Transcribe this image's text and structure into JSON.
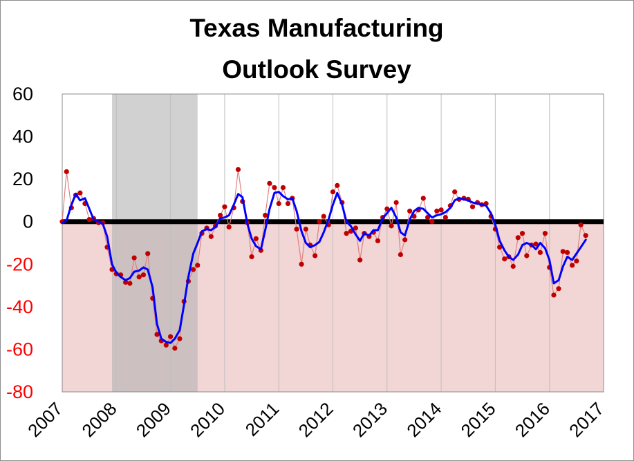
{
  "chart_data": {
    "type": "line",
    "title_lines": [
      "Texas Manufacturing",
      "Outlook Survey"
    ],
    "xlabel": "",
    "ylabel": "",
    "ylim": [
      -80,
      60
    ],
    "yticks": [
      60,
      40,
      20,
      0,
      -20,
      -40,
      -60,
      -80
    ],
    "xlim": [
      2007,
      2017
    ],
    "xticks": [
      "2007",
      "2008",
      "2009",
      "2010",
      "2011",
      "2012",
      "2013",
      "2014",
      "2015",
      "2016",
      "2017"
    ],
    "grid": "vertical",
    "legend": "none",
    "colors": {
      "raw_series": "#c00000",
      "smoothed_series": "#0000ff",
      "zero_line": "#000000",
      "negative_region": "#f2d5d5",
      "recession_band": "#b3b3b3",
      "negative_tick_labels": "#ff0000",
      "positive_tick_labels": "#000000"
    },
    "shaded_regions": [
      {
        "type": "recession",
        "x_start": 2007.92,
        "x_end": 2009.5
      }
    ],
    "negative_region": {
      "y_from": -80,
      "y_to": 0
    },
    "series": [
      {
        "kind": "monthly_raw_with_markers",
        "x": [
          2007.0,
          2007.08,
          2007.17,
          2007.25,
          2007.33,
          2007.42,
          2007.5,
          2007.58,
          2007.67,
          2007.75,
          2007.83,
          2007.92,
          2008.0,
          2008.08,
          2008.17,
          2008.25,
          2008.33,
          2008.42,
          2008.5,
          2008.58,
          2008.67,
          2008.75,
          2008.83,
          2008.92,
          2009.0,
          2009.08,
          2009.17,
          2009.25,
          2009.33,
          2009.42,
          2009.5,
          2009.58,
          2009.67,
          2009.75,
          2009.83,
          2009.92,
          2010.0,
          2010.08,
          2010.17,
          2010.25,
          2010.33,
          2010.42,
          2010.5,
          2010.58,
          2010.67,
          2010.75,
          2010.83,
          2010.92,
          2011.0,
          2011.08,
          2011.17,
          2011.25,
          2011.33,
          2011.42,
          2011.5,
          2011.58,
          2011.67,
          2011.75,
          2011.83,
          2011.92,
          2012.0,
          2012.08,
          2012.17,
          2012.25,
          2012.33,
          2012.42,
          2012.5,
          2012.58,
          2012.67,
          2012.75,
          2012.83,
          2012.92,
          2013.0,
          2013.08,
          2013.17,
          2013.25,
          2013.33,
          2013.42,
          2013.5,
          2013.58,
          2013.67,
          2013.75,
          2013.83,
          2013.92,
          2014.0,
          2014.08,
          2014.17,
          2014.25,
          2014.33,
          2014.42,
          2014.5,
          2014.58,
          2014.67,
          2014.75,
          2014.83,
          2014.92,
          2015.0,
          2015.08,
          2015.17,
          2015.25,
          2015.33,
          2015.42,
          2015.5,
          2015.58,
          2015.67,
          2015.75,
          2015.83,
          2015.92,
          2016.0,
          2016.08,
          2016.17,
          2016.25,
          2016.33,
          2016.42,
          2016.5,
          2016.58,
          2016.67
        ],
        "values": [
          0,
          23.5,
          6.5,
          12.5,
          13.5,
          8.5,
          1,
          1.5,
          -0.5,
          -0.5,
          -12,
          -22.5,
          -24.5,
          -25,
          -28.5,
          -29,
          -17,
          -26,
          -25,
          -15,
          -36,
          -53,
          -56,
          -58,
          -54,
          -59.5,
          -55,
          -37.5,
          -28,
          -22.5,
          -20.5,
          -5.5,
          -3,
          -7,
          -2,
          3,
          7,
          -2.5,
          6.5,
          24.5,
          9.5,
          -0.5,
          -16.5,
          -8,
          -13.5,
          3,
          18,
          16,
          8.5,
          16,
          8.5,
          11,
          -3.5,
          -20,
          -3.5,
          -11,
          -16,
          0,
          2.5,
          -1.5,
          14,
          17,
          9,
          -5.5,
          -4.5,
          -3,
          -18,
          -5.5,
          -7,
          -5,
          -9,
          2,
          6,
          -2,
          9,
          -15.5,
          -8.5,
          5,
          2.5,
          5.5,
          11,
          2,
          0,
          5,
          5.5,
          2,
          7.5,
          14,
          10.5,
          11,
          10.5,
          7,
          9,
          8,
          8.5,
          2.5,
          -3.5,
          -12,
          -17.5,
          -16.5,
          -21,
          -7.5,
          -5.5,
          -16,
          -11,
          -10.5,
          -14.5,
          -5.5,
          -21.5,
          -34.5,
          -31.5,
          -14,
          -14.5,
          -20.5,
          -18.5,
          -1.5,
          -6.5
        ]
      },
      {
        "kind": "three_month_moving_average",
        "x": [
          2007.0,
          2007.08,
          2007.17,
          2007.25,
          2007.33,
          2007.42,
          2007.5,
          2007.58,
          2007.67,
          2007.75,
          2007.83,
          2007.92,
          2008.0,
          2008.08,
          2008.17,
          2008.25,
          2008.33,
          2008.42,
          2008.5,
          2008.58,
          2008.67,
          2008.75,
          2008.83,
          2008.92,
          2009.0,
          2009.08,
          2009.17,
          2009.25,
          2009.33,
          2009.42,
          2009.5,
          2009.58,
          2009.67,
          2009.75,
          2009.83,
          2009.92,
          2010.0,
          2010.08,
          2010.17,
          2010.25,
          2010.33,
          2010.42,
          2010.5,
          2010.58,
          2010.67,
          2010.75,
          2010.83,
          2010.92,
          2011.0,
          2011.08,
          2011.17,
          2011.25,
          2011.33,
          2011.42,
          2011.5,
          2011.58,
          2011.67,
          2011.75,
          2011.83,
          2011.92,
          2012.0,
          2012.08,
          2012.17,
          2012.25,
          2012.33,
          2012.42,
          2012.5,
          2012.58,
          2012.67,
          2012.75,
          2012.83,
          2012.92,
          2013.0,
          2013.08,
          2013.17,
          2013.25,
          2013.33,
          2013.42,
          2013.5,
          2013.58,
          2013.67,
          2013.75,
          2013.83,
          2013.92,
          2014.0,
          2014.08,
          2014.17,
          2014.25,
          2014.33,
          2014.42,
          2014.5,
          2014.58,
          2014.67,
          2014.75,
          2014.83,
          2014.92,
          2015.0,
          2015.08,
          2015.17,
          2015.25,
          2015.33,
          2015.42,
          2015.5,
          2015.58,
          2015.67,
          2015.75,
          2015.83,
          2015.92,
          2016.0,
          2016.08,
          2016.17,
          2016.25,
          2016.33,
          2016.42,
          2016.5,
          2016.58,
          2016.67
        ],
        "values": [
          -0.5,
          0.5,
          8,
          13,
          10,
          11,
          6,
          1,
          0,
          -1,
          -7,
          -20,
          -24,
          -26,
          -27.5,
          -26.5,
          -23.5,
          -23,
          -21.5,
          -22.5,
          -31,
          -48,
          -55,
          -56.5,
          -57,
          -55,
          -51,
          -39,
          -26,
          -15,
          -10,
          -4.5,
          -3.5,
          -4,
          -2.5,
          1.5,
          2,
          3,
          8,
          13,
          11.5,
          -1,
          -8,
          -11.5,
          -13,
          -4,
          6,
          13.5,
          14,
          12,
          10.5,
          11,
          5,
          -4.5,
          -10,
          -12,
          -11,
          -9.5,
          -5,
          1,
          8,
          13.5,
          8,
          0,
          -2,
          -6,
          -9,
          -5.5,
          -6.5,
          -4,
          -4,
          1.5,
          4,
          6.5,
          2,
          -5,
          -6.5,
          1,
          5,
          6.5,
          6,
          4,
          2,
          3,
          3.5,
          4.5,
          6.5,
          10,
          11,
          10.5,
          10,
          9,
          8.5,
          8,
          7.5,
          4,
          -1.5,
          -9,
          -13.5,
          -16.5,
          -18,
          -15.5,
          -11,
          -10,
          -11,
          -13,
          -10,
          -12.5,
          -18,
          -29,
          -27.5,
          -21,
          -16.5,
          -18,
          -15,
          -12,
          -8.5
        ]
      }
    ]
  }
}
